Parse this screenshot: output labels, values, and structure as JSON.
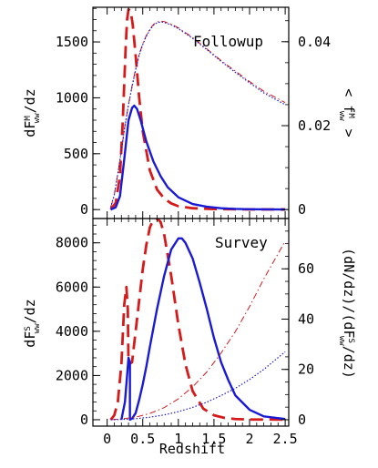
{
  "chart_data": [
    {
      "type": "line",
      "panel": "top",
      "label": "Followup",
      "xlabel": "",
      "ylabel_left": {
        "main": "dF",
        "sup": "M",
        "sub": "ww",
        "tail": "/dz"
      },
      "ylabel_right": {
        "head": "< f",
        "sup": "M",
        "sub": "ww",
        "tail": " >"
      },
      "xlim": [
        -0.2,
        2.55
      ],
      "ylim_left": [
        -80,
        1810
      ],
      "ylim_right": [
        -0.00213,
        0.0482
      ],
      "x_ticks": [
        0,
        0.5,
        1,
        1.5,
        2,
        2.5
      ],
      "y_ticks_left": [
        {
          "value": 0,
          "label": "0"
        },
        {
          "value": 500,
          "label": "500"
        },
        {
          "value": 1000,
          "label": "1000"
        },
        {
          "value": 1500,
          "label": "1500"
        }
      ],
      "y_ticks_right": [
        {
          "value": 0,
          "label": "0"
        },
        {
          "value": 0.02,
          "label": "0.02"
        },
        {
          "value": 0.04,
          "label": "0.04"
        }
      ],
      "series": [
        {
          "color": "#d61a1a",
          "style": "dashed",
          "width": "thick",
          "axis": "left",
          "x": [
            0.05,
            0.12,
            0.18,
            0.22,
            0.26,
            0.28,
            0.3,
            0.33,
            0.36,
            0.4,
            0.45,
            0.5,
            0.6,
            0.7,
            0.8,
            0.9,
            1.0,
            1.2,
            1.5,
            2.0,
            2.5
          ],
          "y": [
            0,
            60,
            300,
            800,
            1450,
            1700,
            1790,
            1780,
            1650,
            1380,
            1000,
            700,
            350,
            180,
            100,
            55,
            30,
            12,
            5,
            2,
            1
          ]
        },
        {
          "color": "#1a1ad6",
          "style": "solid",
          "width": "thick",
          "axis": "left",
          "x": [
            0.05,
            0.12,
            0.18,
            0.24,
            0.3,
            0.35,
            0.38,
            0.42,
            0.47,
            0.55,
            0.65,
            0.75,
            0.85,
            1.0,
            1.2,
            1.4,
            1.6,
            1.8,
            2.0,
            2.5
          ],
          "y": [
            0,
            20,
            120,
            450,
            800,
            910,
            930,
            900,
            800,
            610,
            430,
            300,
            200,
            110,
            50,
            25,
            12,
            6,
            3,
            1
          ]
        },
        {
          "color": "#d61a1a",
          "style": "dashdot",
          "width": "thin",
          "axis": "right",
          "x": [
            0.05,
            0.1,
            0.15,
            0.2,
            0.25,
            0.3,
            0.35,
            0.4,
            0.45,
            0.5,
            0.55,
            0.6,
            0.65,
            0.7,
            0.75,
            0.8,
            0.9,
            1.0,
            1.2,
            1.4,
            1.6,
            1.8,
            2.0,
            2.2,
            2.5
          ],
          "y": [
            0.0005,
            0.0035,
            0.0085,
            0.014,
            0.02,
            0.025,
            0.0295,
            0.0335,
            0.037,
            0.0395,
            0.0415,
            0.043,
            0.0441,
            0.0447,
            0.0449,
            0.0448,
            0.0442,
            0.0433,
            0.041,
            0.0383,
            0.0355,
            0.033,
            0.0305,
            0.0282,
            0.0255
          ]
        },
        {
          "color": "#1a1ad6",
          "style": "dotted",
          "width": "thin",
          "axis": "right",
          "x": [
            0.05,
            0.1,
            0.15,
            0.2,
            0.25,
            0.3,
            0.35,
            0.4,
            0.45,
            0.5,
            0.55,
            0.6,
            0.65,
            0.7,
            0.75,
            0.8,
            0.9,
            1.0,
            1.2,
            1.4,
            1.6,
            1.8,
            2.0,
            2.2,
            2.5
          ],
          "y": [
            0.0005,
            0.0035,
            0.0085,
            0.014,
            0.02,
            0.025,
            0.0293,
            0.0333,
            0.0368,
            0.0393,
            0.0413,
            0.0428,
            0.0439,
            0.0445,
            0.0447,
            0.0446,
            0.044,
            0.0431,
            0.0408,
            0.0381,
            0.0353,
            0.0327,
            0.0302,
            0.0278,
            0.025
          ]
        }
      ]
    },
    {
      "type": "line",
      "panel": "bottom",
      "label": "Survey",
      "xlabel": "Redshift",
      "ylabel_left": {
        "main": "dF",
        "sup": "S",
        "sub": "ww",
        "tail": "/dz"
      },
      "ylabel_right": {
        "head": "(dN/dz)/(dF",
        "sup": "S",
        "sub": "ww",
        "tail": "/dz)"
      },
      "xlim": [
        -0.2,
        2.55
      ],
      "ylim_left": [
        -290,
        9100
      ],
      "ylim_right": [
        -2.55,
        80
      ],
      "x_ticks": [
        {
          "value": 0,
          "label": "0"
        },
        {
          "value": 0.5,
          "label": "0.5"
        },
        {
          "value": 1,
          "label": "1"
        },
        {
          "value": 1.5,
          "label": "1.5"
        },
        {
          "value": 2,
          "label": "2"
        },
        {
          "value": 2.5,
          "label": "2.5"
        }
      ],
      "y_ticks_left": [
        {
          "value": 0,
          "label": "0"
        },
        {
          "value": 2000,
          "label": "2000"
        },
        {
          "value": 4000,
          "label": "4000"
        },
        {
          "value": 6000,
          "label": "6000"
        },
        {
          "value": 8000,
          "label": "8000"
        }
      ],
      "y_ticks_right": [
        {
          "value": 0,
          "label": "0"
        },
        {
          "value": 20,
          "label": "20"
        },
        {
          "value": 40,
          "label": "40"
        },
        {
          "value": 60,
          "label": "60"
        }
      ],
      "series": [
        {
          "color": "#d61a1a",
          "style": "dashed",
          "width": "thick",
          "axis": "left",
          "x": [
            0.05,
            0.1,
            0.15,
            0.2,
            0.24,
            0.27,
            0.29,
            0.3,
            0.3,
            0.35,
            0.4,
            0.45,
            0.5,
            0.55,
            0.6,
            0.65,
            0.7,
            0.75,
            0.8,
            0.9,
            1.0,
            1.1,
            1.2,
            1.35,
            1.5,
            1.65,
            1.8,
            2.0,
            2.5
          ],
          "y": [
            0,
            200,
            800,
            2500,
            5200,
            6000,
            5000,
            2500,
            2500,
            2600,
            4000,
            5400,
            6800,
            7900,
            8700,
            9050,
            9100,
            8950,
            8400,
            6500,
            4300,
            2500,
            1300,
            500,
            200,
            80,
            30,
            10,
            5
          ]
        },
        {
          "color": "#1a1ad6",
          "style": "solid",
          "width": "thick",
          "axis": "left",
          "x": [
            0.2,
            0.25,
            0.28,
            0.3,
            0.32,
            0.32,
            0.35,
            0.4,
            0.45,
            0.5,
            0.55,
            0.6,
            0.7,
            0.8,
            0.9,
            1.0,
            1.05,
            1.1,
            1.2,
            1.3,
            1.4,
            1.5,
            1.6,
            1.7,
            1.8,
            2.0,
            2.2,
            2.5
          ],
          "y": [
            0,
            800,
            2000,
            2800,
            2600,
            0,
            50,
            300,
            900,
            1600,
            2400,
            3300,
            5000,
            6500,
            7700,
            8200,
            8200,
            8000,
            7300,
            6200,
            5000,
            3700,
            2600,
            1800,
            1100,
            450,
            150,
            30
          ]
        },
        {
          "color": "#d61a1a",
          "style": "dashdot",
          "width": "thin",
          "axis": "right",
          "x": [
            0.05,
            0.2,
            0.4,
            0.6,
            0.8,
            1.0,
            1.2,
            1.4,
            1.6,
            1.8,
            2.0,
            2.2,
            2.4,
            2.5
          ],
          "y": [
            0,
            0.3,
            1.0,
            2.5,
            4.8,
            8.3,
            13,
            19,
            26.5,
            35,
            45,
            56,
            66,
            71
          ]
        },
        {
          "color": "#1a1ad6",
          "style": "dotted",
          "width": "thin",
          "axis": "right",
          "x": [
            0.05,
            0.2,
            0.4,
            0.6,
            0.8,
            1.0,
            1.2,
            1.4,
            1.6,
            1.8,
            2.0,
            2.2,
            2.4,
            2.5
          ],
          "y": [
            0,
            0.1,
            0.4,
            1.0,
            1.9,
            3.2,
            4.9,
            7.0,
            9.6,
            12.5,
            16,
            20,
            24.7,
            27
          ]
        }
      ]
    }
  ]
}
